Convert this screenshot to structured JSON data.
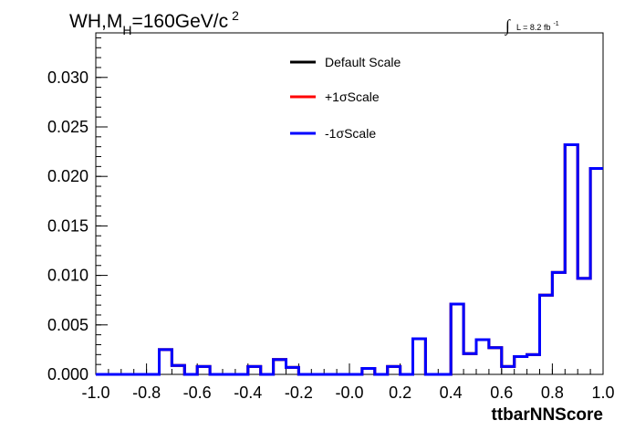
{
  "chart_data": {
    "type": "line",
    "title": {
      "prefix": "WH,M",
      "sub": "H",
      "mid": "=160GeV/c",
      "sup": "2"
    },
    "lumi": {
      "integral": "∫",
      "text": "L = 8.2 fb",
      "sup": "-1"
    },
    "xlabel": "ttbarNNScore",
    "ylabel": "",
    "xlim": [
      -1.0,
      1.0
    ],
    "ylim": [
      0,
      0.0345
    ],
    "x_ticks": [
      "-1.0",
      "-0.8",
      "-0.6",
      "-0.4",
      "-0.2",
      "-0.0",
      "0.2",
      "0.4",
      "0.6",
      "0.8",
      "1.0"
    ],
    "y_ticks": [
      "0.000",
      "0.005",
      "0.010",
      "0.015",
      "0.020",
      "0.025",
      "0.030"
    ],
    "bin_edges": [
      -1.0,
      -0.95,
      -0.9,
      -0.85,
      -0.8,
      -0.75,
      -0.7,
      -0.65,
      -0.6,
      -0.55,
      -0.5,
      -0.45,
      -0.4,
      -0.35,
      -0.3,
      -0.25,
      -0.2,
      -0.15,
      -0.1,
      -0.05,
      0.0,
      0.05,
      0.1,
      0.15,
      0.2,
      0.25,
      0.3,
      0.35,
      0.4,
      0.45,
      0.5,
      0.55,
      0.6,
      0.65,
      0.7,
      0.75,
      0.8,
      0.85,
      0.9,
      0.95,
      1.0
    ],
    "series": [
      {
        "name": "Default Scale",
        "color": "#000000",
        "values": [
          0,
          0,
          0,
          0,
          0,
          0.0025,
          0.0009,
          0,
          0.0008,
          0,
          0,
          0,
          0.0008,
          0,
          0.0015,
          0.0007,
          0,
          0,
          0,
          0,
          0,
          0.0006,
          0,
          0.0008,
          0,
          0.0036,
          0,
          0,
          0.0071,
          0.0021,
          0.0035,
          0.0027,
          0.0008,
          0.0018,
          0.002,
          0.008,
          0.0103,
          0.0232,
          0.0097,
          0.0208
        ]
      },
      {
        "name": "+1σScale",
        "color": "#ff0000",
        "values": [
          0,
          0,
          0,
          0,
          0,
          0.0025,
          0.0009,
          0,
          0.0008,
          0,
          0,
          0,
          0.0008,
          0,
          0.0015,
          0.0007,
          0,
          0,
          0,
          0,
          0,
          0.0006,
          0,
          0.0008,
          0,
          0.0036,
          0,
          0,
          0.0071,
          0.0021,
          0.0035,
          0.0027,
          0.0008,
          0.0018,
          0.002,
          0.008,
          0.0103,
          0.0232,
          0.0097,
          0.0208
        ]
      },
      {
        "name": "-1σScale",
        "color": "#0000ff",
        "values": [
          0,
          0,
          0,
          0,
          0,
          0.0025,
          0.0009,
          0,
          0.0008,
          0,
          0,
          0,
          0.0008,
          0,
          0.0015,
          0.0007,
          0,
          0,
          0,
          0,
          0,
          0.0006,
          0,
          0.0008,
          0,
          0.0036,
          0,
          0,
          0.0071,
          0.0021,
          0.0035,
          0.0027,
          0.0008,
          0.0018,
          0.002,
          0.008,
          0.0103,
          0.0232,
          0.0097,
          0.0208
        ]
      }
    ],
    "grid": false,
    "legend_position": "top-center"
  }
}
